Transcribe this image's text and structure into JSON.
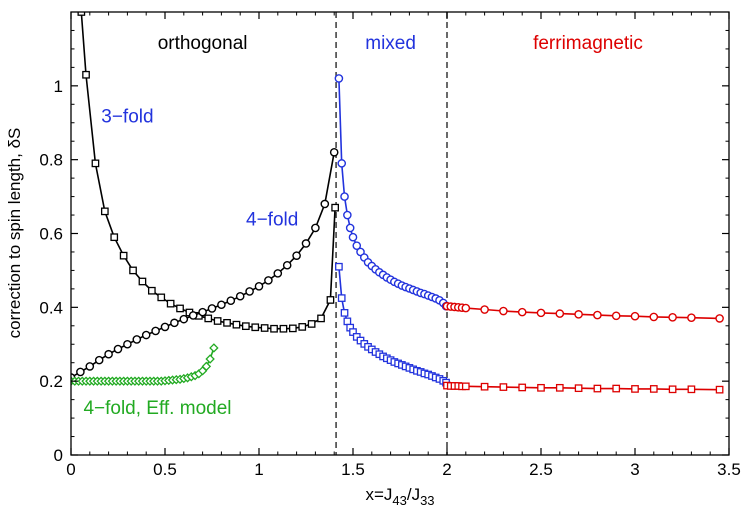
{
  "chart_data": {
    "type": "line",
    "xlabel": {
      "main": "x=J",
      "sub1": "43",
      "mid": "/J",
      "sub2": "33"
    },
    "ylabel": "correction to spin length, δS",
    "xlim": [
      0,
      3.5
    ],
    "ylim": [
      0,
      1.2
    ],
    "xticks": [
      0,
      0.5,
      1,
      1.5,
      2,
      2.5,
      3,
      3.5
    ],
    "xtick_labels": [
      "0",
      "0.5",
      "1",
      "1.5",
      "2",
      "2.5",
      "3",
      "3.5"
    ],
    "yticks": [
      0,
      0.2,
      0.4,
      0.6,
      0.8,
      1.0
    ],
    "ytick_labels": [
      "0",
      "0.2",
      "0.4",
      "0.6",
      "0.8",
      "1"
    ],
    "vlines": [
      1.41,
      2.0
    ],
    "regions": [
      {
        "label": "orthogonal",
        "x": 0.7,
        "color": "#000000"
      },
      {
        "label": "mixed",
        "x": 1.7,
        "color": "#2233dd"
      },
      {
        "label": "ferrimagnetic",
        "x": 2.75,
        "color": "#dd0000"
      }
    ],
    "annotations": [
      {
        "text": "3−fold",
        "x": 0.3,
        "y": 0.92,
        "color": "#2233dd"
      },
      {
        "text": "4−fold",
        "x": 1.07,
        "y": 0.64,
        "color": "#2233dd"
      },
      {
        "text": "4−fold, Eff. model",
        "x": 0.46,
        "y": 0.13,
        "color": "#22aa22"
      }
    ],
    "series": [
      {
        "name": "3-fold orthogonal",
        "marker": "square",
        "color": "#000000",
        "x": [
          0.055,
          0.08,
          0.13,
          0.18,
          0.23,
          0.28,
          0.33,
          0.38,
          0.43,
          0.48,
          0.53,
          0.58,
          0.63,
          0.68,
          0.73,
          0.78,
          0.83,
          0.88,
          0.93,
          0.98,
          1.03,
          1.08,
          1.13,
          1.18,
          1.23,
          1.28,
          1.33,
          1.38,
          1.405
        ],
        "y": [
          1.2,
          1.03,
          0.79,
          0.66,
          0.59,
          0.54,
          0.5,
          0.47,
          0.445,
          0.427,
          0.41,
          0.397,
          0.386,
          0.377,
          0.37,
          0.363,
          0.358,
          0.353,
          0.349,
          0.346,
          0.344,
          0.342,
          0.342,
          0.343,
          0.347,
          0.355,
          0.37,
          0.42,
          0.67
        ]
      },
      {
        "name": "4-fold orthogonal",
        "marker": "circle",
        "color": "#000000",
        "x": [
          0,
          0.05,
          0.1,
          0.15,
          0.2,
          0.25,
          0.3,
          0.35,
          0.4,
          0.45,
          0.5,
          0.55,
          0.6,
          0.65,
          0.7,
          0.75,
          0.8,
          0.85,
          0.9,
          0.95,
          1.0,
          1.05,
          1.1,
          1.15,
          1.2,
          1.25,
          1.3,
          1.35,
          1.4
        ],
        "y": [
          0.21,
          0.225,
          0.24,
          0.257,
          0.273,
          0.287,
          0.3,
          0.313,
          0.325,
          0.336,
          0.347,
          0.358,
          0.368,
          0.378,
          0.387,
          0.397,
          0.407,
          0.418,
          0.43,
          0.443,
          0.457,
          0.473,
          0.492,
          0.514,
          0.54,
          0.573,
          0.615,
          0.68,
          0.82
        ]
      },
      {
        "name": "4-fold mixed",
        "marker": "circle",
        "color": "#2233dd",
        "x": [
          1.425,
          1.44,
          1.455,
          1.47,
          1.485,
          1.5,
          1.52,
          1.54,
          1.56,
          1.58,
          1.6,
          1.62,
          1.64,
          1.66,
          1.68,
          1.7,
          1.72,
          1.74,
          1.76,
          1.78,
          1.8,
          1.82,
          1.84,
          1.86,
          1.88,
          1.9,
          1.92,
          1.94,
          1.96,
          1.98,
          1.995
        ],
        "y": [
          1.02,
          0.79,
          0.7,
          0.65,
          0.615,
          0.59,
          0.567,
          0.55,
          0.535,
          0.522,
          0.512,
          0.503,
          0.495,
          0.488,
          0.481,
          0.475,
          0.469,
          0.464,
          0.459,
          0.455,
          0.451,
          0.447,
          0.443,
          0.439,
          0.436,
          0.432,
          0.428,
          0.424,
          0.419,
          0.412,
          0.403
        ]
      },
      {
        "name": "3-fold mixed",
        "marker": "square",
        "color": "#2233dd",
        "x": [
          1.425,
          1.44,
          1.455,
          1.47,
          1.485,
          1.5,
          1.52,
          1.54,
          1.56,
          1.58,
          1.6,
          1.62,
          1.64,
          1.66,
          1.68,
          1.7,
          1.72,
          1.74,
          1.76,
          1.78,
          1.8,
          1.82,
          1.84,
          1.86,
          1.88,
          1.9,
          1.92,
          1.94,
          1.96,
          1.98,
          1.995
        ],
        "y": [
          0.51,
          0.425,
          0.385,
          0.362,
          0.345,
          0.333,
          0.32,
          0.31,
          0.301,
          0.293,
          0.286,
          0.279,
          0.273,
          0.267,
          0.262,
          0.257,
          0.252,
          0.248,
          0.244,
          0.24,
          0.236,
          0.232,
          0.228,
          0.225,
          0.221,
          0.218,
          0.214,
          0.21,
          0.206,
          0.201,
          0.196
        ]
      },
      {
        "name": "4-fold ferrimagnetic",
        "marker": "circle",
        "color": "#dd0000",
        "x": [
          2.0,
          2.02,
          2.04,
          2.06,
          2.08,
          2.1,
          2.2,
          2.3,
          2.4,
          2.5,
          2.6,
          2.7,
          2.8,
          2.9,
          3.0,
          3.1,
          3.2,
          3.3,
          3.45
        ],
        "y": [
          0.403,
          0.402,
          0.401,
          0.4,
          0.399,
          0.398,
          0.394,
          0.39,
          0.387,
          0.385,
          0.383,
          0.381,
          0.379,
          0.377,
          0.376,
          0.374,
          0.373,
          0.372,
          0.37
        ]
      },
      {
        "name": "3-fold ferrimagnetic",
        "marker": "square",
        "color": "#dd0000",
        "x": [
          2.0,
          2.02,
          2.04,
          2.06,
          2.08,
          2.1,
          2.2,
          2.3,
          2.4,
          2.5,
          2.6,
          2.7,
          2.8,
          2.9,
          3.0,
          3.1,
          3.2,
          3.3,
          3.45
        ],
        "y": [
          0.188,
          0.187,
          0.187,
          0.187,
          0.186,
          0.186,
          0.185,
          0.184,
          0.183,
          0.182,
          0.182,
          0.181,
          0.18,
          0.18,
          0.179,
          0.179,
          0.178,
          0.178,
          0.177
        ]
      },
      {
        "name": "4-fold Eff. model",
        "marker": "diamond",
        "color": "#22aa22",
        "x": [
          0.0,
          0.02,
          0.04,
          0.06,
          0.08,
          0.1,
          0.12,
          0.14,
          0.16,
          0.18,
          0.2,
          0.22,
          0.24,
          0.26,
          0.28,
          0.3,
          0.32,
          0.34,
          0.36,
          0.38,
          0.4,
          0.42,
          0.44,
          0.46,
          0.48,
          0.5,
          0.52,
          0.54,
          0.56,
          0.58,
          0.6,
          0.62,
          0.64,
          0.66,
          0.68,
          0.7,
          0.72,
          0.74,
          0.76
        ],
        "y": [
          0.2,
          0.2,
          0.2,
          0.2,
          0.2,
          0.2,
          0.2,
          0.2,
          0.2,
          0.2,
          0.2,
          0.2,
          0.2,
          0.2,
          0.2,
          0.2,
          0.2,
          0.2,
          0.2,
          0.2,
          0.2,
          0.2,
          0.2,
          0.2,
          0.2,
          0.201,
          0.202,
          0.203,
          0.204,
          0.205,
          0.207,
          0.209,
          0.212,
          0.215,
          0.22,
          0.228,
          0.24,
          0.26,
          0.29
        ]
      }
    ]
  }
}
